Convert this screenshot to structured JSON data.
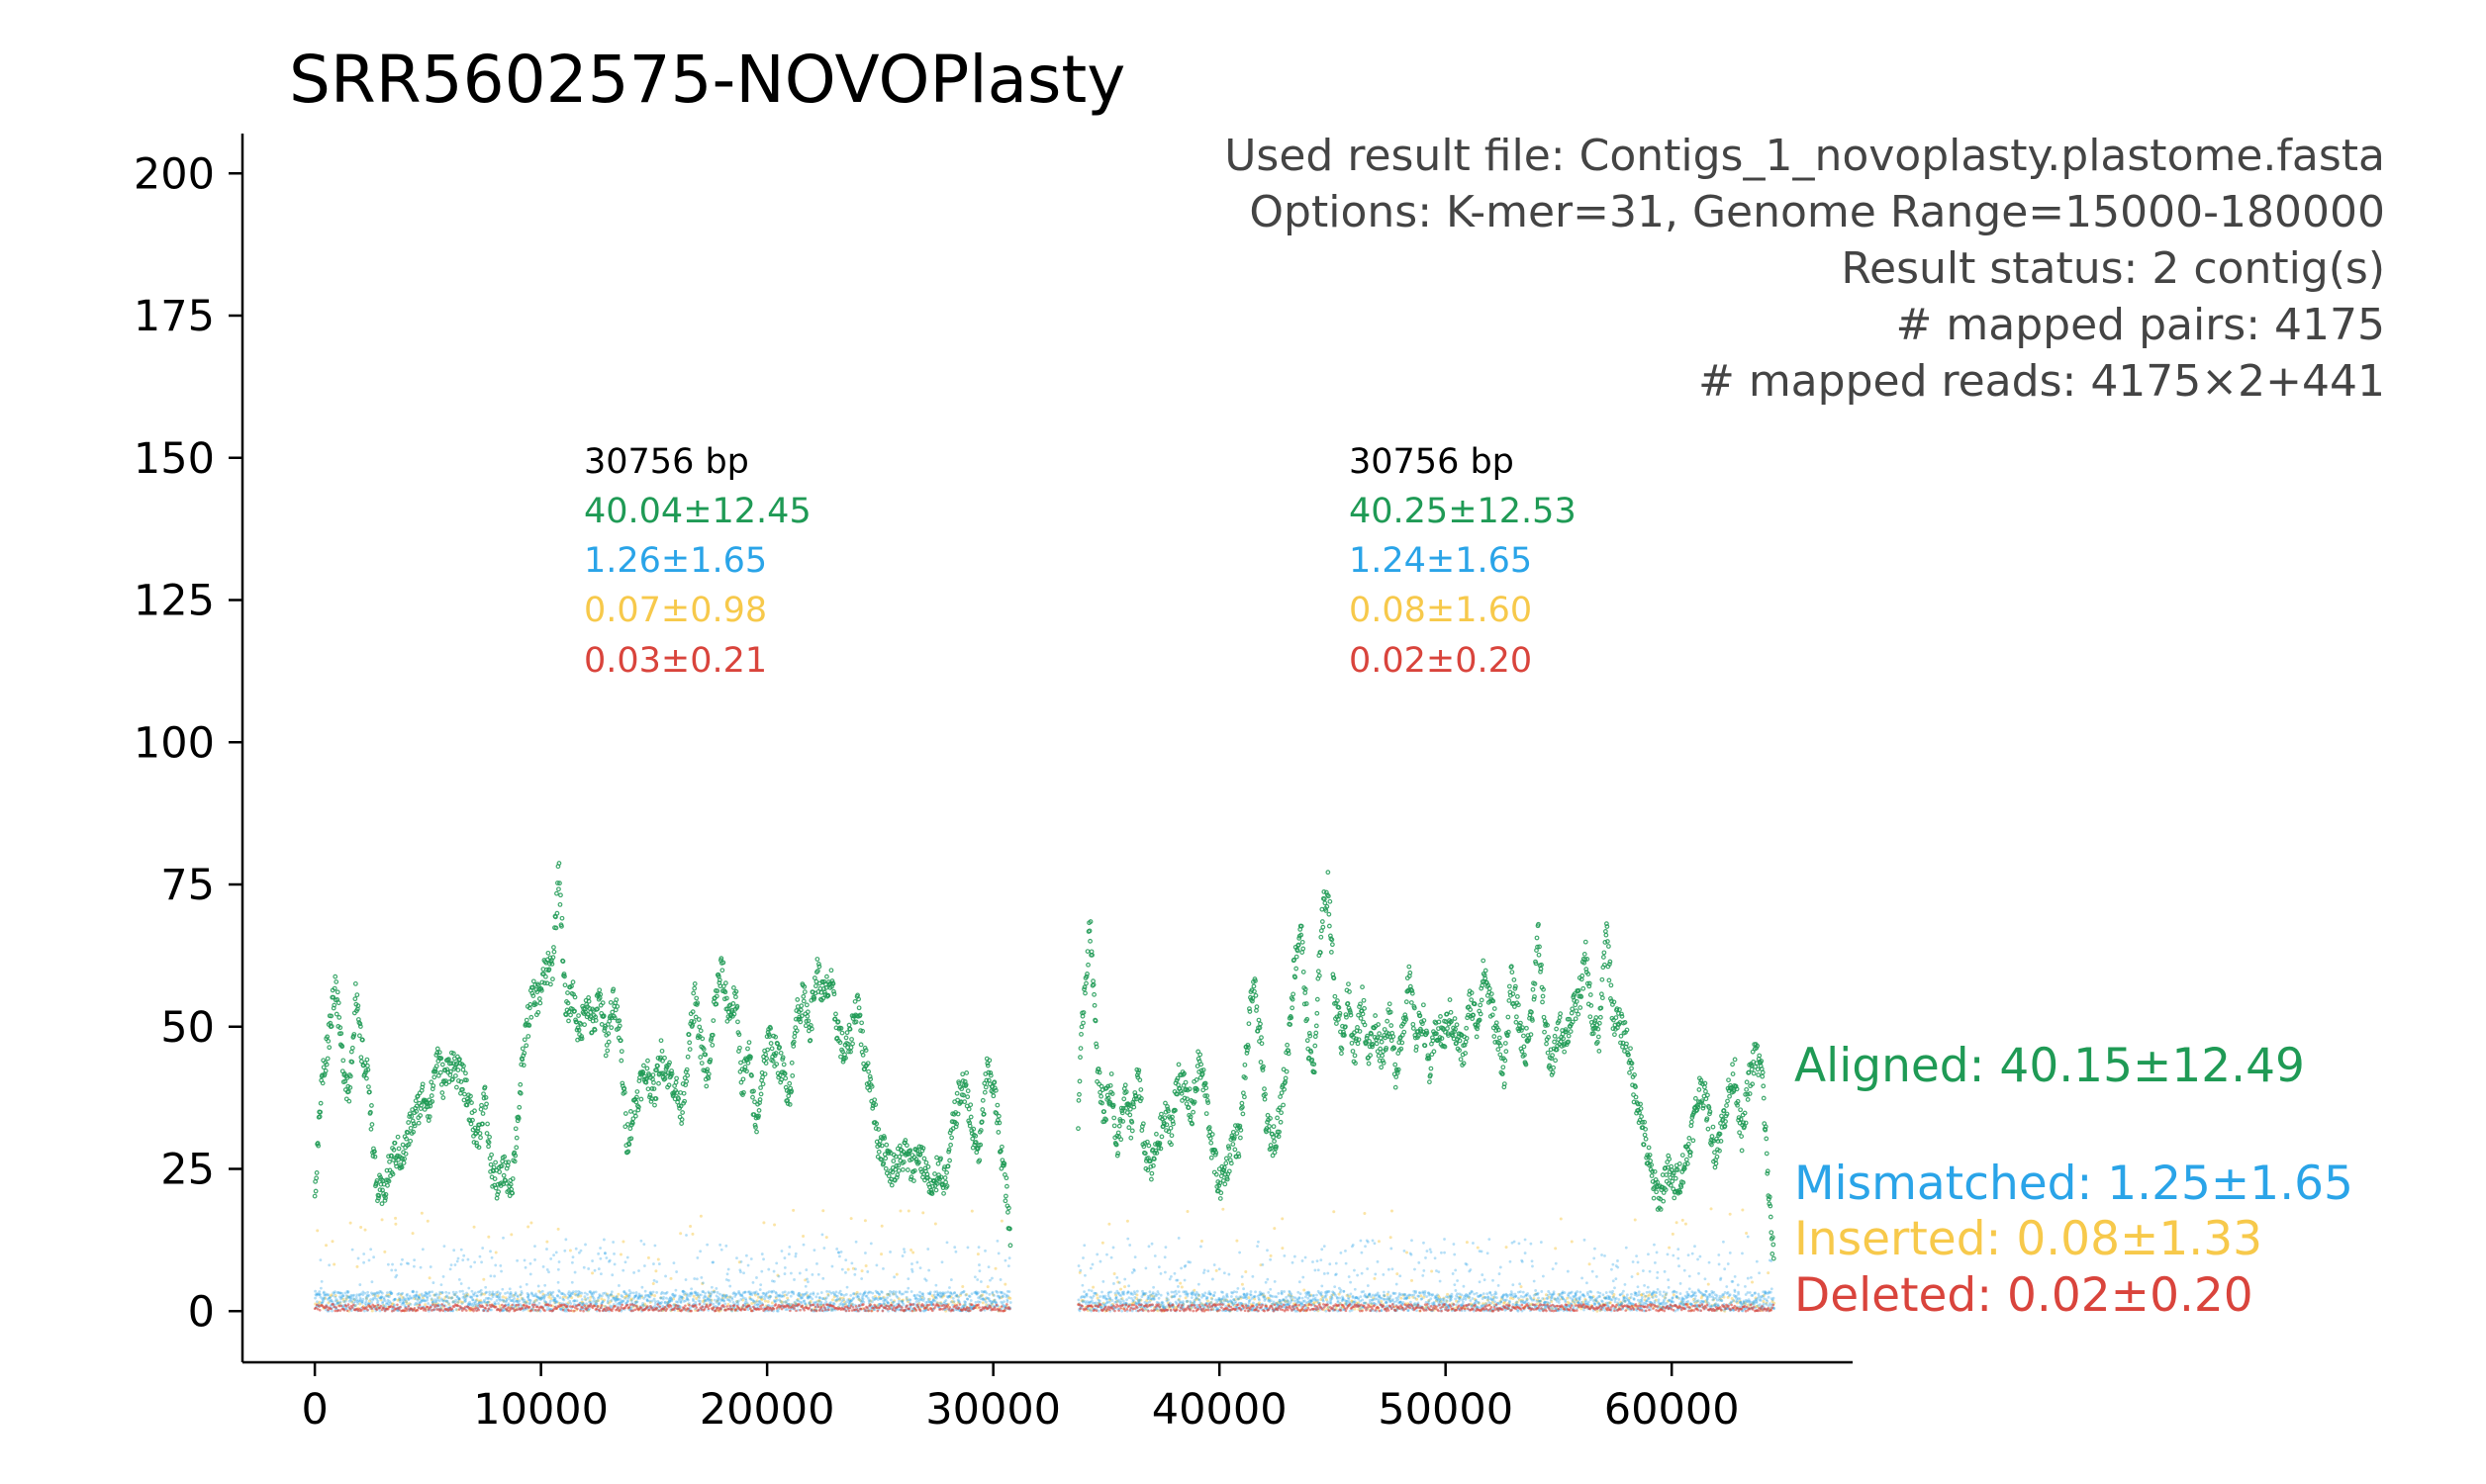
{
  "chart_data": {
    "type": "scatter",
    "title": "SRR5602575-NOVOPlasty",
    "xlabel": "",
    "ylabel": "",
    "xlim": [
      -3200,
      68000
    ],
    "ylim": [
      -9,
      207
    ],
    "x_ticks": [
      {
        "value": 0,
        "label": "0"
      },
      {
        "value": 10000,
        "label": "10000"
      },
      {
        "value": 20000,
        "label": "20000"
      },
      {
        "value": 30000,
        "label": "30000"
      },
      {
        "value": 40000,
        "label": "40000"
      },
      {
        "value": 50000,
        "label": "50000"
      },
      {
        "value": 60000,
        "label": "60000"
      }
    ],
    "y_ticks": [
      {
        "value": 0,
        "label": "0"
      },
      {
        "value": 25,
        "label": "25"
      },
      {
        "value": 50,
        "label": "50"
      },
      {
        "value": 75,
        "label": "75"
      },
      {
        "value": 100,
        "label": "100"
      },
      {
        "value": 125,
        "label": "125"
      },
      {
        "value": 150,
        "label": "150"
      },
      {
        "value": 175,
        "label": "175"
      },
      {
        "value": 200,
        "label": "200"
      }
    ],
    "info_lines": [
      "Used result file: Contigs_1_novoplasty.plastome.fasta",
      "Options: K-mer=31, Genome Range=15000-180000",
      "Result status: 2 contig(s)",
      "# mapped pairs: 4175",
      "# mapped reads: 4175×2+441"
    ],
    "colors": {
      "aligned": "#1f9a55",
      "mismatched": "#2aa4e8",
      "inserted": "#f7c94b",
      "deleted": "#d9443c",
      "info": "#444444"
    },
    "contigs": [
      {
        "length_label": "30756 bp",
        "x_start": 0,
        "x_end": 30756,
        "aligned": "40.04±12.45",
        "mismatched": "1.26±1.65",
        "inserted": "0.07±0.98",
        "deleted": "0.03±0.21",
        "aligned_profile": [
          [
            0,
            20
          ],
          [
            300,
            40
          ],
          [
            600,
            48
          ],
          [
            900,
            58
          ],
          [
            1200,
            45
          ],
          [
            1500,
            38
          ],
          [
            1800,
            55
          ],
          [
            2100,
            45
          ],
          [
            2400,
            40
          ],
          [
            2700,
            22
          ],
          [
            3000,
            20
          ],
          [
            3300,
            25
          ],
          [
            3600,
            28
          ],
          [
            3900,
            27
          ],
          [
            4200,
            32
          ],
          [
            4500,
            35
          ],
          [
            4800,
            38
          ],
          [
            5100,
            36
          ],
          [
            5400,
            45
          ],
          [
            5700,
            40
          ],
          [
            6000,
            44
          ],
          [
            6300,
            42
          ],
          [
            6600,
            40
          ],
          [
            6900,
            35
          ],
          [
            7200,
            30
          ],
          [
            7500,
            38
          ],
          [
            7800,
            25
          ],
          [
            8100,
            22
          ],
          [
            8400,
            25
          ],
          [
            8700,
            22
          ],
          [
            9000,
            35
          ],
          [
            9300,
            48
          ],
          [
            9600,
            55
          ],
          [
            9900,
            55
          ],
          [
            10200,
            60
          ],
          [
            10500,
            60
          ],
          [
            10800,
            78
          ],
          [
            11100,
            52
          ],
          [
            11400,
            56
          ],
          [
            11700,
            48
          ],
          [
            12000,
            55
          ],
          [
            12300,
            50
          ],
          [
            12600,
            55
          ],
          [
            12900,
            47
          ],
          [
            13200,
            55
          ],
          [
            13500,
            48
          ],
          [
            13800,
            30
          ],
          [
            14100,
            35
          ],
          [
            14400,
            40
          ],
          [
            14700,
            42
          ],
          [
            15000,
            38
          ],
          [
            15300,
            45
          ],
          [
            15600,
            42
          ],
          [
            15900,
            40
          ],
          [
            16200,
            35
          ],
          [
            16500,
            45
          ],
          [
            16800,
            55
          ],
          [
            17100,
            46
          ],
          [
            17400,
            40
          ],
          [
            17700,
            55
          ],
          [
            18000,
            60
          ],
          [
            18300,
            52
          ],
          [
            18600,
            55
          ],
          [
            18900,
            40
          ],
          [
            19200,
            45
          ],
          [
            19500,
            32
          ],
          [
            19800,
            42
          ],
          [
            20100,
            48
          ],
          [
            20400,
            45
          ],
          [
            20700,
            42
          ],
          [
            21000,
            38
          ],
          [
            21300,
            52
          ],
          [
            21600,
            55
          ],
          [
            21900,
            50
          ],
          [
            22200,
            60
          ],
          [
            22500,
            55
          ],
          [
            22800,
            58
          ],
          [
            23100,
            50
          ],
          [
            23400,
            45
          ],
          [
            23700,
            48
          ],
          [
            24000,
            55
          ],
          [
            24300,
            44
          ],
          [
            24600,
            40
          ],
          [
            24900,
            30
          ],
          [
            25200,
            28
          ],
          [
            25500,
            25
          ],
          [
            25800,
            26
          ],
          [
            26100,
            28
          ],
          [
            26400,
            25
          ],
          [
            26700,
            28
          ],
          [
            27000,
            25
          ],
          [
            27300,
            20
          ],
          [
            27600,
            26
          ],
          [
            27900,
            22
          ],
          [
            28200,
            32
          ],
          [
            28500,
            38
          ],
          [
            28800,
            40
          ],
          [
            29100,
            30
          ],
          [
            29400,
            28
          ],
          [
            29700,
            42
          ],
          [
            30000,
            40
          ],
          [
            30300,
            30
          ],
          [
            30600,
            20
          ],
          [
            30756,
            12
          ]
        ],
        "mismatched_level": 3.5,
        "mismatched_spread": 10,
        "inserted_spread": 18,
        "deleted_level": 1.2
      },
      {
        "length_label": "30756 bp",
        "x_start": 33756,
        "x_end": 64512,
        "aligned": "40.25±12.53",
        "mismatched": "1.24±1.65",
        "inserted": "0.08±1.60",
        "deleted": "0.02±0.20",
        "aligned_profile": [
          [
            33756,
            35
          ],
          [
            34000,
            55
          ],
          [
            34300,
            68
          ],
          [
            34600,
            42
          ],
          [
            34900,
            35
          ],
          [
            35200,
            40
          ],
          [
            35500,
            28
          ],
          [
            35800,
            38
          ],
          [
            36100,
            32
          ],
          [
            36400,
            42
          ],
          [
            36700,
            28
          ],
          [
            37000,
            25
          ],
          [
            37300,
            30
          ],
          [
            37600,
            34
          ],
          [
            37900,
            32
          ],
          [
            38200,
            42
          ],
          [
            38500,
            38
          ],
          [
            38800,
            35
          ],
          [
            39100,
            44
          ],
          [
            39400,
            38
          ],
          [
            39700,
            28
          ],
          [
            40000,
            22
          ],
          [
            40300,
            25
          ],
          [
            40600,
            30
          ],
          [
            40900,
            30
          ],
          [
            41200,
            45
          ],
          [
            41500,
            58
          ],
          [
            41800,
            48
          ],
          [
            42100,
            32
          ],
          [
            42400,
            30
          ],
          [
            42700,
            35
          ],
          [
            43000,
            45
          ],
          [
            43300,
            60
          ],
          [
            43600,
            68
          ],
          [
            43900,
            48
          ],
          [
            44200,
            42
          ],
          [
            44500,
            68
          ],
          [
            44800,
            75
          ],
          [
            45100,
            55
          ],
          [
            45400,
            48
          ],
          [
            45700,
            55
          ],
          [
            46000,
            45
          ],
          [
            46300,
            55
          ],
          [
            46600,
            45
          ],
          [
            46900,
            50
          ],
          [
            47200,
            45
          ],
          [
            47500,
            52
          ],
          [
            47800,
            42
          ],
          [
            48100,
            50
          ],
          [
            48400,
            58
          ],
          [
            48700,
            48
          ],
          [
            49000,
            52
          ],
          [
            49300,
            42
          ],
          [
            49600,
            50
          ],
          [
            49900,
            48
          ],
          [
            50200,
            52
          ],
          [
            50500,
            48
          ],
          [
            50800,
            45
          ],
          [
            51100,
            55
          ],
          [
            51400,
            50
          ],
          [
            51700,
            60
          ],
          [
            52000,
            54
          ],
          [
            52300,
            48
          ],
          [
            52600,
            42
          ],
          [
            52900,
            58
          ],
          [
            53200,
            52
          ],
          [
            53500,
            45
          ],
          [
            53800,
            52
          ],
          [
            54100,
            66
          ],
          [
            54400,
            50
          ],
          [
            54700,
            42
          ],
          [
            55000,
            50
          ],
          [
            55300,
            48
          ],
          [
            55600,
            52
          ],
          [
            55900,
            55
          ],
          [
            56200,
            62
          ],
          [
            56500,
            50
          ],
          [
            56800,
            48
          ],
          [
            57100,
            68
          ],
          [
            57400,
            52
          ],
          [
            57700,
            50
          ],
          [
            58000,
            48
          ],
          [
            58300,
            40
          ],
          [
            58600,
            35
          ],
          [
            58900,
            28
          ],
          [
            59200,
            22
          ],
          [
            59500,
            20
          ],
          [
            59800,
            25
          ],
          [
            60100,
            22
          ],
          [
            60400,
            24
          ],
          [
            60700,
            28
          ],
          [
            61000,
            34
          ],
          [
            61300,
            40
          ],
          [
            61600,
            35
          ],
          [
            61900,
            28
          ],
          [
            62200,
            32
          ],
          [
            62500,
            38
          ],
          [
            62800,
            42
          ],
          [
            63100,
            30
          ],
          [
            63400,
            40
          ],
          [
            63700,
            45
          ],
          [
            64000,
            42
          ],
          [
            64300,
            20
          ],
          [
            64512,
            8
          ]
        ],
        "mismatched_level": 3.5,
        "mismatched_spread": 10,
        "inserted_spread": 18,
        "deleted_level": 1.2
      }
    ],
    "summary": {
      "aligned": "Aligned: 40.15±12.49",
      "mismatched": "Mismatched: 1.25±1.65",
      "inserted": "Inserted: 0.08±1.33",
      "deleted": "Deleted: 0.02±0.20"
    }
  }
}
